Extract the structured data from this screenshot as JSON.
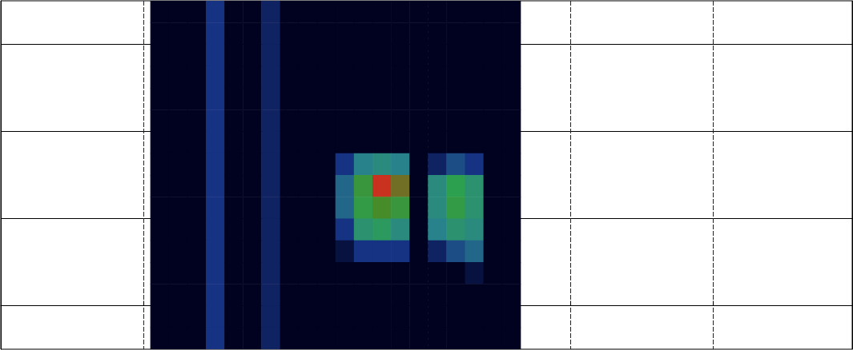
{
  "chart_data": {
    "type": "heatmap",
    "xlim": [
      0,
      5.98
    ],
    "xticks": [
      1,
      2,
      3,
      4,
      5
    ],
    "ylim": [
      -0.5,
      3.5
    ],
    "yticks": [
      0,
      1,
      2,
      3
    ],
    "grid": true,
    "tick_labels": false,
    "zlim": [
      0,
      1
    ],
    "x": [
      1.115,
      1.245,
      1.375,
      1.505,
      1.635,
      1.765,
      1.895,
      2.025,
      2.155,
      2.285,
      2.415,
      2.545,
      2.675,
      2.805,
      2.935,
      3.065,
      3.195,
      3.325,
      3.455,
      3.585
    ],
    "y": [
      3.375,
      3.125,
      2.875,
      2.625,
      2.375,
      2.125,
      1.875,
      1.625,
      1.375,
      1.125,
      0.875,
      0.625,
      0.375,
      0.125,
      -0.125,
      -0.375
    ],
    "z": [
      [
        0,
        0,
        0,
        0.15,
        0,
        0,
        0.1,
        0,
        0,
        0,
        0,
        0,
        0,
        0,
        0,
        0,
        0,
        0,
        0,
        0
      ],
      [
        0,
        0,
        0,
        0.15,
        0,
        0,
        0.1,
        0,
        0,
        0,
        0,
        0,
        0,
        0,
        0,
        0,
        0,
        0,
        0,
        0
      ],
      [
        0,
        0,
        0,
        0.15,
        0,
        0,
        0.1,
        0,
        0,
        0,
        0,
        0,
        0,
        0,
        0,
        0,
        0,
        0,
        0,
        0
      ],
      [
        0,
        0,
        0,
        0.15,
        0,
        0,
        0.1,
        0,
        0,
        0,
        0,
        0,
        0,
        0,
        0,
        0,
        0,
        0,
        0,
        0
      ],
      [
        0,
        0,
        0,
        0.15,
        0,
        0,
        0.1,
        0,
        0,
        0,
        0,
        0,
        0,
        0,
        0,
        0,
        0,
        0,
        0,
        0
      ],
      [
        0,
        0,
        0,
        0.15,
        0,
        0,
        0.1,
        0,
        0,
        0,
        0,
        0,
        0,
        0,
        0,
        0,
        0,
        0,
        0,
        0
      ],
      [
        0,
        0,
        0,
        0.15,
        0,
        0,
        0.1,
        0,
        0,
        0,
        0,
        0,
        0,
        0,
        0,
        0,
        0,
        0,
        0,
        0
      ],
      [
        0,
        0,
        0,
        0.15,
        0,
        0,
        0.1,
        0,
        0,
        0,
        0.15,
        0.3,
        0.35,
        0.3,
        0,
        0.1,
        0.2,
        0.15,
        0,
        0
      ],
      [
        0,
        0,
        0,
        0.15,
        0,
        0,
        0.1,
        0,
        0,
        0,
        0.25,
        0.6,
        0.85,
        0.75,
        0,
        0.35,
        0.5,
        0.4,
        0,
        0
      ],
      [
        0,
        0,
        0,
        0.15,
        0,
        0,
        0.1,
        0,
        0,
        0,
        0.25,
        0.55,
        0.7,
        0.6,
        0,
        0.35,
        0.55,
        0.4,
        0,
        0
      ],
      [
        0,
        0,
        0,
        0.15,
        0,
        0,
        0.1,
        0,
        0,
        0,
        0.15,
        0.4,
        0.45,
        0.35,
        0,
        0.3,
        0.4,
        0.35,
        0,
        0
      ],
      [
        0,
        0,
        0,
        0.15,
        0,
        0,
        0.1,
        0,
        0,
        0,
        0.05,
        0.15,
        0.15,
        0.15,
        0,
        0.1,
        0.2,
        0.25,
        0,
        0
      ],
      [
        0,
        0,
        0,
        0.15,
        0,
        0,
        0.1,
        0,
        0,
        0,
        0,
        0,
        0,
        0,
        0,
        0,
        0,
        0.05,
        0,
        0
      ],
      [
        0,
        0,
        0,
        0.15,
        0,
        0,
        0.1,
        0,
        0,
        0,
        0,
        0,
        0,
        0,
        0,
        0,
        0,
        0,
        0,
        0
      ],
      [
        0,
        0,
        0,
        0.15,
        0,
        0,
        0.1,
        0,
        0,
        0,
        0,
        0,
        0,
        0,
        0,
        0,
        0,
        0,
        0,
        0
      ],
      [
        0,
        0,
        0,
        0.15,
        0,
        0,
        0.1,
        0,
        0,
        0,
        0,
        0,
        0,
        0,
        0,
        0,
        0,
        0,
        0,
        0
      ]
    ]
  }
}
